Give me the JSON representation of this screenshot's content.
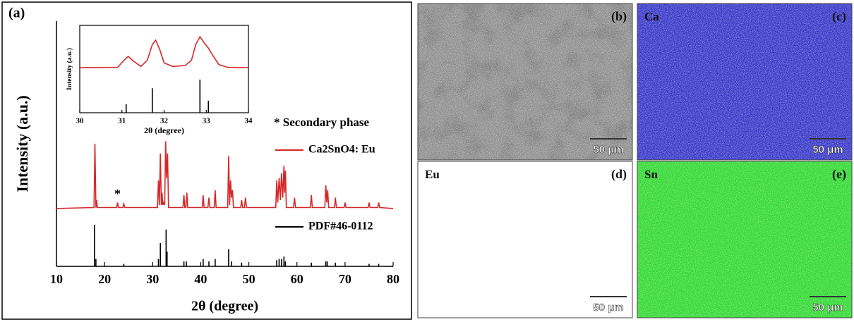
{
  "chart_data": [
    {
      "type": "line",
      "panel_label": "(a)",
      "xlabel": "2θ (degree)",
      "ylabel": "Intensity (a.u.)",
      "xlim": [
        10,
        80
      ],
      "xticks": [
        10,
        20,
        30,
        40,
        50,
        60,
        70,
        80
      ],
      "ylim": [
        0,
        100
      ],
      "legend_note": "* Secondary phase",
      "annotations": [
        {
          "text": "*",
          "x": 22.7,
          "y": 29
        }
      ],
      "series": [
        {
          "name": "Ca2SnO4: Eu",
          "color": "#d62728",
          "style": "line",
          "x": [
            10,
            17.8,
            18.0,
            18.2,
            18.35,
            18.5,
            22.5,
            22.7,
            22.9,
            23.8,
            24.0,
            24.2,
            31.0,
            31.2,
            31.4,
            31.6,
            31.8,
            31.95,
            32.1,
            32.3,
            32.5,
            32.7,
            32.9,
            33.1,
            33.3,
            36.3,
            36.5,
            36.7,
            36.9,
            37.1,
            37.3,
            40.3,
            40.5,
            40.7,
            41.5,
            41.7,
            41.9,
            42.8,
            43.0,
            43.2,
            45.6,
            45.8,
            46.0,
            46.2,
            46.4,
            46.6,
            46.8,
            47.0,
            48.3,
            48.5,
            48.7,
            49.1,
            49.3,
            49.5,
            55.6,
            55.8,
            56.0,
            56.3,
            56.55,
            56.8,
            57.05,
            57.3,
            57.45,
            57.6,
            57.8,
            59.3,
            59.5,
            59.7,
            62.8,
            63.0,
            63.2,
            65.8,
            66.0,
            66.2,
            66.4,
            66.6,
            67.8,
            68.0,
            68.2,
            69.8,
            70.0,
            70.2,
            74.8,
            75.0,
            75.2,
            76.8,
            77.0,
            77.2,
            80
          ],
          "values": [
            23.6,
            24,
            50,
            24,
            27,
            24,
            24,
            26,
            24,
            24,
            25.5,
            24,
            24,
            35,
            25,
            46,
            25,
            30,
            25,
            26,
            25,
            51,
            36,
            46,
            24,
            24,
            29,
            24,
            24,
            30,
            24,
            24,
            29,
            24,
            24,
            28,
            24,
            24,
            31,
            24,
            24,
            45,
            25,
            35,
            28,
            31,
            24,
            24,
            24,
            27,
            24,
            24,
            28,
            24,
            24,
            35,
            26,
            36,
            27,
            38,
            28,
            41,
            30,
            39,
            24,
            24,
            28,
            24,
            24,
            29,
            24,
            24,
            33,
            26,
            31,
            24,
            24,
            28,
            24,
            24,
            26,
            24,
            24,
            26,
            24,
            24,
            26,
            24,
            23.6
          ]
        },
        {
          "name": "PDF#46-0112",
          "color": "#000000",
          "style": "stick",
          "x": [
            17.9,
            18.2,
            24,
            31.2,
            31.6,
            32.8,
            33.0,
            36.5,
            37,
            40.5,
            41.7,
            43,
            45.8,
            46.4,
            48.5,
            55.8,
            56.3,
            56.8,
            57.3,
            57.6,
            63,
            66,
            66.3,
            68,
            75,
            77
          ],
          "values": [
            17,
            3,
            1,
            3,
            9.5,
            15,
            6,
            2,
            2,
            3,
            2,
            3,
            7,
            2,
            1.5,
            2.5,
            3,
            3,
            4,
            2,
            1.5,
            2,
            2,
            1.5,
            1,
            1
          ]
        }
      ]
    },
    {
      "type": "line",
      "xlabel": "2θ (degree)",
      "ylabel": "Intensity (a.u.)",
      "xlim": [
        30,
        34
      ],
      "xticks": [
        30,
        31,
        32,
        33,
        34
      ],
      "ylim": [
        0,
        100
      ],
      "series": [
        {
          "color": "#d62728",
          "style": "line",
          "x": [
            30,
            30.9,
            31.05,
            31.15,
            31.25,
            31.45,
            31.6,
            31.72,
            31.8,
            31.9,
            32.0,
            32.2,
            32.5,
            32.65,
            32.75,
            32.85,
            32.95,
            33.05,
            33.15,
            33.3,
            33.5,
            34
          ],
          "values": [
            51.6,
            52,
            60,
            64.5,
            60,
            53,
            60,
            78,
            83,
            72,
            57,
            53,
            54,
            60,
            78,
            87,
            80,
            74,
            66,
            55,
            52,
            51.6
          ]
        },
        {
          "color": "#000000",
          "style": "stick",
          "x": [
            31.1,
            31.72,
            32.85,
            33.05
          ],
          "values": [
            9.7,
            28,
            38,
            13.7
          ]
        }
      ]
    }
  ],
  "panels": [
    {
      "label": "(b)",
      "color": "#8c8c8c",
      "scale_bar": "50 μm"
    },
    {
      "label": "(c)",
      "element": "Ca",
      "color": "#3434c8",
      "scale_bar": "50 μm"
    },
    {
      "label": "(d)",
      "element": "Eu",
      "color": "#36c8d8",
      "scale_bar": "50 μm"
    },
    {
      "label": "(e)",
      "element": "Sn",
      "color": "#2ed82e",
      "scale_bar": "50 μm"
    }
  ]
}
